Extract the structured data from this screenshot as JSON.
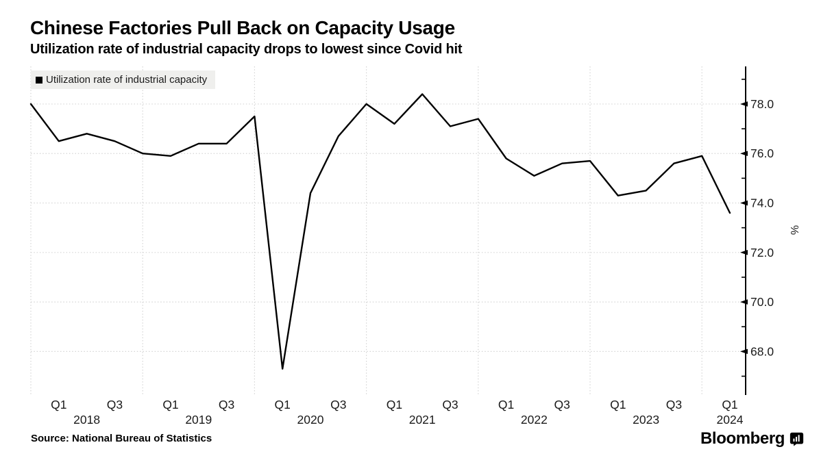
{
  "chart_data": {
    "type": "line",
    "title": "Chinese Factories Pull Back on Capacity Usage",
    "subtitle": "Utilization rate of industrial capacity drops to lowest since Covid hit",
    "ylabel": "%",
    "ylim": [
      66.24,
      79.52
    ],
    "y_major_ticks": [
      68.0,
      70.0,
      72.0,
      74.0,
      76.0,
      78.0
    ],
    "y_minor_ticks": [
      67.0,
      69.0,
      71.0,
      73.0,
      75.0,
      77.0,
      79.0
    ],
    "grid": "dotted",
    "legend_position": "top-left",
    "categories": [
      "2017 Q4",
      "2018 Q1",
      "2018 Q2",
      "2018 Q3",
      "2018 Q4",
      "2019 Q1",
      "2019 Q2",
      "2019 Q3",
      "2019 Q4",
      "2020 Q1",
      "2020 Q2",
      "2020 Q3",
      "2020 Q4",
      "2021 Q1",
      "2021 Q2",
      "2021 Q3",
      "2021 Q4",
      "2022 Q1",
      "2022 Q2",
      "2022 Q3",
      "2022 Q4",
      "2023 Q1",
      "2023 Q2",
      "2023 Q3",
      "2023 Q4",
      "2024 Q1"
    ],
    "series": [
      {
        "name": "Utilization rate of industrial capacity",
        "color": "#000000",
        "values": [
          78.0,
          76.5,
          76.8,
          76.5,
          76.0,
          75.9,
          76.4,
          76.4,
          77.5,
          67.3,
          74.4,
          76.7,
          78.0,
          77.2,
          78.4,
          77.1,
          77.4,
          75.8,
          75.1,
          75.6,
          75.7,
          74.3,
          74.5,
          75.6,
          75.9,
          73.6
        ]
      }
    ],
    "x_axis": {
      "quarter_labels": [
        {
          "label": "Q1",
          "index": 1
        },
        {
          "label": "Q3",
          "index": 3
        },
        {
          "label": "Q1",
          "index": 5
        },
        {
          "label": "Q3",
          "index": 7
        },
        {
          "label": "Q1",
          "index": 9
        },
        {
          "label": "Q3",
          "index": 11
        },
        {
          "label": "Q1",
          "index": 13
        },
        {
          "label": "Q3",
          "index": 15
        },
        {
          "label": "Q1",
          "index": 17
        },
        {
          "label": "Q3",
          "index": 19
        },
        {
          "label": "Q1",
          "index": 21
        },
        {
          "label": "Q3",
          "index": 23
        },
        {
          "label": "Q1",
          "index": 25
        }
      ],
      "year_labels": [
        {
          "label": "2018",
          "index": 2
        },
        {
          "label": "2019",
          "index": 6
        },
        {
          "label": "2020",
          "index": 10
        },
        {
          "label": "2021",
          "index": 14
        },
        {
          "label": "2022",
          "index": 18
        },
        {
          "label": "2023",
          "index": 22
        },
        {
          "label": "2024",
          "index": 25
        }
      ],
      "year_gridline_indices": [
        0,
        4,
        8,
        12,
        16,
        20,
        24
      ]
    },
    "colors": {
      "line": "#000000",
      "grid": "#d4d4d4",
      "axis": "#000000",
      "tick_text": "#1a1a1a",
      "legend_bg": "#efefed"
    }
  },
  "footer": {
    "source": "Source: National Bureau of Statistics",
    "brand": "Bloomberg"
  }
}
